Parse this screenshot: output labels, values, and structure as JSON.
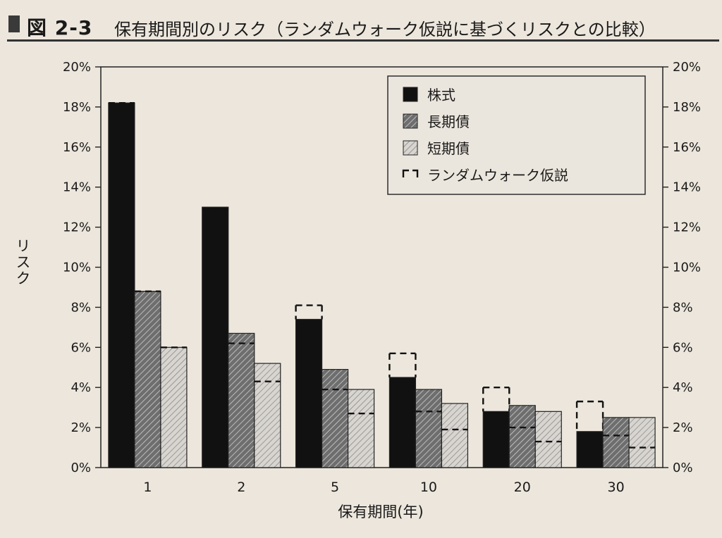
{
  "figure": {
    "number": "図 2-3",
    "title": "保有期間別のリスク（ランダムウォーク仮説に基づくリスクとの比較）"
  },
  "chart_data": {
    "type": "bar",
    "title": "保有期間別のリスク（ランダムウォーク仮説に基づくリスクとの比較）",
    "xlabel": "保有期間(年)",
    "ylabel": "リスク",
    "ylim": [
      0,
      20
    ],
    "y_ticks": [
      "0%",
      "2%",
      "4%",
      "6%",
      "8%",
      "10%",
      "12%",
      "14%",
      "16%",
      "18%",
      "20%"
    ],
    "y_axis_both_sides": true,
    "legend_position": "top-right",
    "categories": [
      "1",
      "2",
      "5",
      "10",
      "20",
      "30"
    ],
    "series": [
      {
        "name": "株式",
        "pattern": "solid-black",
        "values": [
          18.2,
          13.0,
          7.4,
          4.5,
          2.8,
          1.8
        ]
      },
      {
        "name": "長期債",
        "pattern": "dark-hatch",
        "values": [
          8.8,
          6.7,
          4.9,
          3.9,
          3.1,
          2.5
        ]
      },
      {
        "name": "短期債",
        "pattern": "light-hatch",
        "values": [
          6.0,
          5.2,
          3.9,
          3.2,
          2.8,
          2.5
        ]
      },
      {
        "name": "ランダムウォーク仮説",
        "pattern": "dashed-marker",
        "values": [
          [
            18.2,
            8.8,
            6.0
          ],
          [
            12.9,
            6.2,
            4.3
          ],
          [
            8.1,
            3.9,
            2.7
          ],
          [
            5.7,
            2.8,
            1.9
          ],
          [
            4.0,
            2.0,
            1.3
          ],
          [
            3.3,
            1.6,
            1.0
          ]
        ]
      }
    ]
  }
}
